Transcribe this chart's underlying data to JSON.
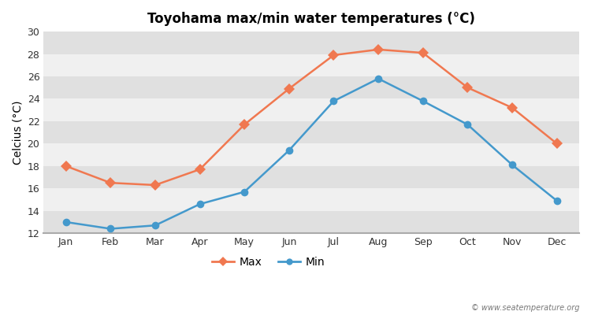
{
  "title": "Toyohama max/min water temperatures (°C)",
  "ylabel": "Celcius (°C)",
  "months": [
    "Jan",
    "Feb",
    "Mar",
    "Apr",
    "May",
    "Jun",
    "Jul",
    "Aug",
    "Sep",
    "Oct",
    "Nov",
    "Dec"
  ],
  "max_temps": [
    18.0,
    16.5,
    16.3,
    17.7,
    21.7,
    24.9,
    27.9,
    28.4,
    28.1,
    25.0,
    23.2,
    20.0
  ],
  "min_temps": [
    13.0,
    12.4,
    12.7,
    14.6,
    15.7,
    19.4,
    23.8,
    25.8,
    23.8,
    21.7,
    18.1,
    14.9
  ],
  "max_color": "#f07850",
  "min_color": "#4499cc",
  "figure_bg": "#ffffff",
  "band_light": "#f0f0f0",
  "band_dark": "#e0e0e0",
  "ylim": [
    12,
    30
  ],
  "yticks": [
    12,
    14,
    16,
    18,
    20,
    22,
    24,
    26,
    28,
    30
  ],
  "watermark": "© www.seatemperature.org",
  "legend_labels": [
    "Max",
    "Min"
  ],
  "title_fontsize": 12,
  "label_fontsize": 10,
  "tick_fontsize": 9,
  "watermark_fontsize": 7
}
